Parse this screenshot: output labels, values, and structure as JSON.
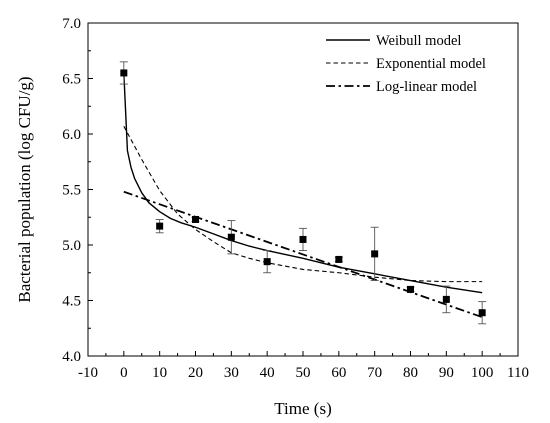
{
  "chart_data": {
    "type": "scatter",
    "title": "",
    "xlabel": "Time (s)",
    "ylabel": "Bacterial population (log CFU/g)",
    "xlim": [
      -10,
      110
    ],
    "ylim": [
      4.0,
      7.0
    ],
    "xticks": [
      -10,
      0,
      10,
      20,
      30,
      40,
      50,
      60,
      70,
      80,
      90,
      100,
      110
    ],
    "yticks": [
      4.0,
      4.5,
      5.0,
      5.5,
      6.0,
      6.5,
      7.0
    ],
    "grid": false,
    "legend_position": "top-right",
    "observed": {
      "x": [
        0,
        10,
        20,
        30,
        40,
        50,
        60,
        70,
        80,
        90,
        100
      ],
      "y": [
        6.55,
        5.17,
        5.23,
        5.07,
        4.85,
        5.05,
        4.87,
        4.92,
        4.6,
        4.51,
        4.39
      ],
      "error": [
        0.1,
        0.06,
        0.02,
        0.15,
        0.1,
        0.1,
        0.02,
        0.24,
        0.02,
        0.12,
        0.1
      ]
    },
    "series": [
      {
        "name": "Weibull model",
        "line_style": "solid",
        "x": [
          0,
          1,
          2,
          3,
          5,
          7,
          10,
          13,
          16,
          20,
          25,
          30,
          35,
          40,
          50,
          60,
          70,
          80,
          90,
          100
        ],
        "y": [
          6.55,
          5.85,
          5.7,
          5.6,
          5.47,
          5.38,
          5.3,
          5.24,
          5.2,
          5.16,
          5.1,
          5.04,
          4.99,
          4.95,
          4.88,
          4.8,
          4.74,
          4.68,
          4.62,
          4.57
        ]
      },
      {
        "name": "Exponential model",
        "line_style": "dashed",
        "x": [
          0,
          5,
          10,
          15,
          20,
          25,
          30,
          35,
          40,
          45,
          50,
          60,
          70,
          80,
          90,
          100
        ],
        "y": [
          6.07,
          5.77,
          5.49,
          5.28,
          5.14,
          5.03,
          4.93,
          4.88,
          4.84,
          4.81,
          4.78,
          4.75,
          4.71,
          4.68,
          4.67,
          4.67
        ]
      },
      {
        "name": "Log-linear model",
        "line_style": "dash-dot",
        "x": [
          0,
          100
        ],
        "y": [
          5.48,
          4.35
        ]
      }
    ]
  },
  "icons": {
    "observed_marker": "filled-square-marker"
  }
}
